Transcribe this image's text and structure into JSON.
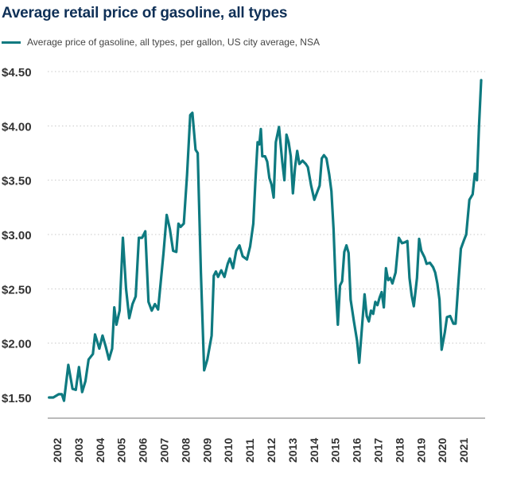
{
  "chart_data": {
    "type": "line",
    "title": "Average retail price of gasoline, all types",
    "xlabel": "",
    "ylabel": "",
    "ylim": [
      1.5,
      4.5
    ],
    "xlim": [
      2002,
      2022
    ],
    "y_ticks": [
      "$1.50",
      "$2.00",
      "$2.50",
      "$3.00",
      "$3.50",
      "$4.00",
      "$4.50"
    ],
    "y_tick_values": [
      1.5,
      2.0,
      2.5,
      3.0,
      3.5,
      4.0,
      4.5
    ],
    "x_ticks": [
      "2002",
      "2003",
      "2004",
      "2005",
      "2006",
      "2007",
      "2008",
      "2009",
      "2010",
      "2011",
      "2012",
      "2013",
      "2014",
      "2015",
      "2016",
      "2017",
      "2018",
      "2019",
      "2020",
      "2021"
    ],
    "grid": "horizontal-dotted",
    "legend_position": "top-left",
    "series": [
      {
        "name": "Average price of gasoline, all types, per gallon, US city average, NSA",
        "color": "#0e7a80",
        "points": [
          [
            2001.95,
            1.5
          ],
          [
            2002.15,
            1.5
          ],
          [
            2002.4,
            1.53
          ],
          [
            2002.55,
            1.53
          ],
          [
            2002.65,
            1.47
          ],
          [
            2002.85,
            1.8
          ],
          [
            2003.05,
            1.58
          ],
          [
            2003.2,
            1.57
          ],
          [
            2003.35,
            1.78
          ],
          [
            2003.5,
            1.55
          ],
          [
            2003.65,
            1.65
          ],
          [
            2003.8,
            1.85
          ],
          [
            2004.0,
            1.9
          ],
          [
            2004.1,
            2.08
          ],
          [
            2004.3,
            1.95
          ],
          [
            2004.45,
            2.07
          ],
          [
            2004.6,
            1.97
          ],
          [
            2004.75,
            1.85
          ],
          [
            2004.9,
            1.95
          ],
          [
            2005.0,
            2.33
          ],
          [
            2005.1,
            2.17
          ],
          [
            2005.25,
            2.3
          ],
          [
            2005.4,
            2.97
          ],
          [
            2005.55,
            2.5
          ],
          [
            2005.7,
            2.23
          ],
          [
            2005.85,
            2.36
          ],
          [
            2006.0,
            2.43
          ],
          [
            2006.15,
            2.97
          ],
          [
            2006.3,
            2.97
          ],
          [
            2006.45,
            3.03
          ],
          [
            2006.6,
            2.38
          ],
          [
            2006.75,
            2.3
          ],
          [
            2006.9,
            2.36
          ],
          [
            2007.05,
            2.31
          ],
          [
            2007.3,
            2.83
          ],
          [
            2007.45,
            3.18
          ],
          [
            2007.6,
            3.05
          ],
          [
            2007.75,
            2.85
          ],
          [
            2007.9,
            2.84
          ],
          [
            2008.0,
            3.1
          ],
          [
            2008.1,
            3.07
          ],
          [
            2008.25,
            3.1
          ],
          [
            2008.4,
            3.55
          ],
          [
            2008.55,
            4.1
          ],
          [
            2008.65,
            4.12
          ],
          [
            2008.8,
            3.78
          ],
          [
            2008.9,
            3.75
          ],
          [
            2009.05,
            2.65
          ],
          [
            2009.2,
            1.75
          ],
          [
            2009.35,
            1.85
          ],
          [
            2009.55,
            2.07
          ],
          [
            2009.65,
            2.62
          ],
          [
            2009.75,
            2.66
          ],
          [
            2009.85,
            2.61
          ],
          [
            2010.0,
            2.67
          ],
          [
            2010.15,
            2.61
          ],
          [
            2010.3,
            2.73
          ],
          [
            2010.4,
            2.78
          ],
          [
            2010.55,
            2.69
          ],
          [
            2010.7,
            2.85
          ],
          [
            2010.85,
            2.9
          ],
          [
            2011.0,
            2.8
          ],
          [
            2011.2,
            2.77
          ],
          [
            2011.35,
            2.89
          ],
          [
            2011.5,
            3.1
          ],
          [
            2011.6,
            3.5
          ],
          [
            2011.7,
            3.85
          ],
          [
            2011.78,
            3.83
          ],
          [
            2011.85,
            3.97
          ],
          [
            2011.92,
            3.72
          ],
          [
            2012.05,
            3.72
          ],
          [
            2012.15,
            3.67
          ],
          [
            2012.25,
            3.52
          ],
          [
            2012.35,
            3.46
          ],
          [
            2012.45,
            3.34
          ],
          [
            2012.55,
            3.85
          ],
          [
            2012.7,
            3.99
          ],
          [
            2012.85,
            3.67
          ],
          [
            2012.95,
            3.5
          ],
          [
            2013.05,
            3.92
          ],
          [
            2013.15,
            3.85
          ],
          [
            2013.25,
            3.72
          ],
          [
            2013.35,
            3.38
          ],
          [
            2013.45,
            3.62
          ],
          [
            2013.55,
            3.77
          ],
          [
            2013.65,
            3.65
          ],
          [
            2013.8,
            3.68
          ],
          [
            2013.95,
            3.65
          ],
          [
            2014.05,
            3.62
          ],
          [
            2014.2,
            3.45
          ],
          [
            2014.35,
            3.32
          ],
          [
            2014.5,
            3.4
          ],
          [
            2014.6,
            3.45
          ],
          [
            2014.7,
            3.7
          ],
          [
            2014.8,
            3.73
          ],
          [
            2014.92,
            3.7
          ],
          [
            2015.05,
            3.55
          ],
          [
            2015.15,
            3.4
          ],
          [
            2015.25,
            3.05
          ],
          [
            2015.35,
            2.53
          ],
          [
            2015.45,
            2.17
          ],
          [
            2015.55,
            2.53
          ],
          [
            2015.65,
            2.57
          ],
          [
            2015.75,
            2.84
          ],
          [
            2015.85,
            2.9
          ],
          [
            2015.95,
            2.83
          ],
          [
            2016.05,
            2.4
          ],
          [
            2016.2,
            2.2
          ],
          [
            2016.35,
            2.02
          ],
          [
            2016.45,
            1.82
          ],
          [
            2016.6,
            2.2
          ],
          [
            2016.7,
            2.45
          ],
          [
            2016.8,
            2.25
          ],
          [
            2016.9,
            2.2
          ],
          [
            2017.0,
            2.3
          ],
          [
            2017.1,
            2.27
          ],
          [
            2017.2,
            2.38
          ],
          [
            2017.3,
            2.35
          ],
          [
            2017.4,
            2.42
          ],
          [
            2017.5,
            2.47
          ],
          [
            2017.6,
            2.33
          ],
          [
            2017.7,
            2.69
          ],
          [
            2017.8,
            2.58
          ],
          [
            2017.9,
            2.6
          ],
          [
            2018.0,
            2.55
          ],
          [
            2018.15,
            2.65
          ],
          [
            2018.3,
            2.97
          ],
          [
            2018.45,
            2.92
          ],
          [
            2018.6,
            2.93
          ],
          [
            2018.7,
            2.94
          ],
          [
            2018.8,
            2.6
          ],
          [
            2018.9,
            2.44
          ],
          [
            2019.0,
            2.34
          ],
          [
            2019.15,
            2.6
          ],
          [
            2019.25,
            2.96
          ],
          [
            2019.35,
            2.85
          ],
          [
            2019.5,
            2.79
          ],
          [
            2019.6,
            2.73
          ],
          [
            2019.75,
            2.74
          ],
          [
            2019.9,
            2.7
          ],
          [
            2020.0,
            2.65
          ],
          [
            2020.1,
            2.55
          ],
          [
            2020.2,
            2.4
          ],
          [
            2020.3,
            1.94
          ],
          [
            2020.45,
            2.1
          ],
          [
            2020.55,
            2.24
          ],
          [
            2020.7,
            2.25
          ],
          [
            2020.85,
            2.18
          ],
          [
            2020.95,
            2.18
          ],
          [
            2021.1,
            2.6
          ],
          [
            2021.2,
            2.87
          ],
          [
            2021.35,
            2.95
          ],
          [
            2021.45,
            3.0
          ],
          [
            2021.6,
            3.32
          ],
          [
            2021.75,
            3.37
          ],
          [
            2021.85,
            3.56
          ],
          [
            2021.95,
            3.5
          ],
          [
            2022.05,
            4.0
          ],
          [
            2022.15,
            4.42
          ]
        ]
      }
    ]
  }
}
